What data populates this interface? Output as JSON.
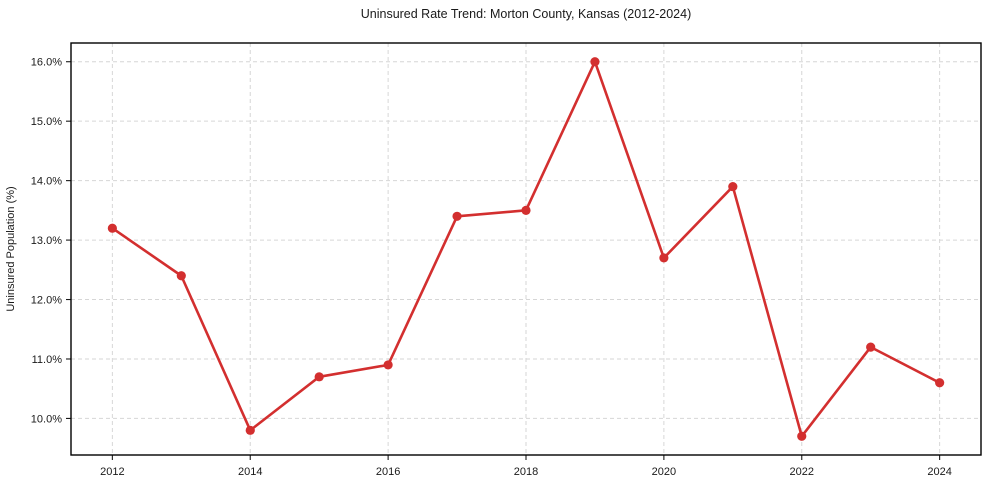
{
  "chart_data": {
    "type": "line",
    "title": "Uninsured Rate Trend: Morton County, Kansas (2012-2024)",
    "xlabel": "",
    "ylabel": "Uninsured Population (%)",
    "x": [
      2012,
      2013,
      2014,
      2015,
      2016,
      2017,
      2018,
      2019,
      2020,
      2021,
      2022,
      2023,
      2024
    ],
    "values": [
      13.2,
      12.4,
      9.8,
      10.7,
      10.9,
      13.4,
      13.5,
      16.0,
      12.7,
      13.9,
      9.7,
      11.2,
      10.6
    ],
    "xlim": [
      2011.4,
      2024.6
    ],
    "ylim": [
      9.385,
      16.315
    ],
    "xticks": [
      {
        "value": 2012,
        "label": "2012"
      },
      {
        "value": 2014,
        "label": "2014"
      },
      {
        "value": 2016,
        "label": "2016"
      },
      {
        "value": 2018,
        "label": "2018"
      },
      {
        "value": 2020,
        "label": "2020"
      },
      {
        "value": 2022,
        "label": "2022"
      },
      {
        "value": 2024,
        "label": "2024"
      }
    ],
    "yticks": [
      {
        "value": 10.0,
        "label": "10.0%"
      },
      {
        "value": 11.0,
        "label": "11.0%"
      },
      {
        "value": 12.0,
        "label": "12.0%"
      },
      {
        "value": 13.0,
        "label": "13.0%"
      },
      {
        "value": 14.0,
        "label": "14.0%"
      },
      {
        "value": 15.0,
        "label": "15.0%"
      },
      {
        "value": 16.0,
        "label": "16.0%"
      }
    ],
    "line_color": "#d32f2f",
    "marker": "circle",
    "grid": true,
    "grid_style": "dashed",
    "legend": "none"
  }
}
